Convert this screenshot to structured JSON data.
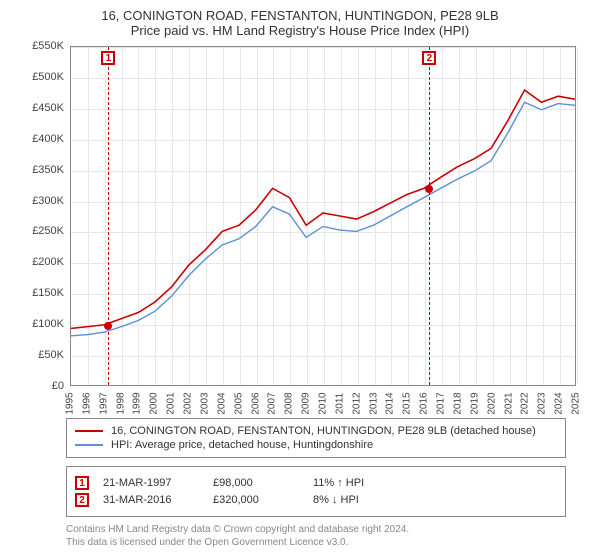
{
  "title_line1": "16, CONINGTON ROAD, FENSTANTON, HUNTINGDON, PE28 9LB",
  "title_line2": "Price paid vs. HM Land Registry's House Price Index (HPI)",
  "chart": {
    "type": "line",
    "background_color": "#ffffff",
    "grid_color": "#e6e6e6",
    "border_color": "#888888",
    "ylim": [
      0,
      550000
    ],
    "ytick_step": 50000,
    "ytick_labels": [
      "£0",
      "£50K",
      "£100K",
      "£150K",
      "£200K",
      "£250K",
      "£300K",
      "£350K",
      "£400K",
      "£450K",
      "£500K",
      "£550K"
    ],
    "xlim": [
      1995,
      2025
    ],
    "xtick_step": 1,
    "xtick_labels": [
      "1995",
      "1996",
      "1997",
      "1998",
      "1999",
      "2000",
      "2001",
      "2002",
      "2003",
      "2004",
      "2005",
      "2006",
      "2007",
      "2008",
      "2009",
      "2010",
      "2011",
      "2012",
      "2013",
      "2014",
      "2015",
      "2016",
      "2017",
      "2018",
      "2019",
      "2020",
      "2021",
      "2022",
      "2023",
      "2024",
      "2025"
    ],
    "series": [
      {
        "name": "property",
        "color": "#cc0000",
        "width": 1.6,
        "x": [
          1995,
          1996,
          1997,
          1998,
          1999,
          2000,
          2001,
          2002,
          2003,
          2004,
          2005,
          2006,
          2007,
          2008,
          2009,
          2010,
          2011,
          2012,
          2013,
          2014,
          2015,
          2016,
          2017,
          2018,
          2019,
          2020,
          2021,
          2022,
          2023,
          2024,
          2025
        ],
        "y": [
          92000,
          95000,
          98000,
          108000,
          118000,
          135000,
          160000,
          195000,
          220000,
          250000,
          260000,
          285000,
          320000,
          305000,
          260000,
          280000,
          275000,
          270000,
          282000,
          296000,
          310000,
          320000,
          338000,
          355000,
          368000,
          385000,
          430000,
          480000,
          460000,
          470000,
          465000
        ]
      },
      {
        "name": "hpi",
        "color": "#5b8fd6",
        "width": 1.4,
        "x": [
          1995,
          1996,
          1997,
          1998,
          1999,
          2000,
          2001,
          2002,
          2003,
          2004,
          2005,
          2006,
          2007,
          2008,
          2009,
          2010,
          2011,
          2012,
          2013,
          2014,
          2015,
          2016,
          2017,
          2018,
          2019,
          2020,
          2021,
          2022,
          2023,
          2024,
          2025
        ],
        "y": [
          80000,
          82000,
          86000,
          95000,
          105000,
          120000,
          145000,
          178000,
          205000,
          228000,
          238000,
          258000,
          290000,
          278000,
          240000,
          258000,
          252000,
          250000,
          260000,
          275000,
          290000,
          305000,
          320000,
          335000,
          348000,
          365000,
          410000,
          460000,
          448000,
          458000,
          455000
        ]
      }
    ],
    "vlines": [
      {
        "x": 1997.22,
        "color": "#cc0000",
        "marker_label": "1",
        "dot_y": 98000
      },
      {
        "x": 2016.25,
        "color": "#cc0000",
        "marker_label": "2",
        "dot_y": 320000
      }
    ],
    "label_fontsize": 11,
    "tick_fontsize": 11
  },
  "legend": {
    "items": [
      {
        "color": "#cc0000",
        "label": "16, CONINGTON ROAD, FENSTANTON, HUNTINGDON, PE28 9LB (detached house)"
      },
      {
        "color": "#5b8fd6",
        "label": "HPI: Average price, detached house, Huntingdonshire"
      }
    ]
  },
  "events": [
    {
      "num": "1",
      "color": "#cc0000",
      "date": "21-MAR-1997",
      "price": "£98,000",
      "delta": "11% ↑ HPI"
    },
    {
      "num": "2",
      "color": "#cc0000",
      "date": "31-MAR-2016",
      "price": "£320,000",
      "delta": "8% ↓ HPI"
    }
  ],
  "footer_line1": "Contains HM Land Registry data © Crown copyright and database right 2024.",
  "footer_line2": "This data is licensed under the Open Government Licence v3.0."
}
